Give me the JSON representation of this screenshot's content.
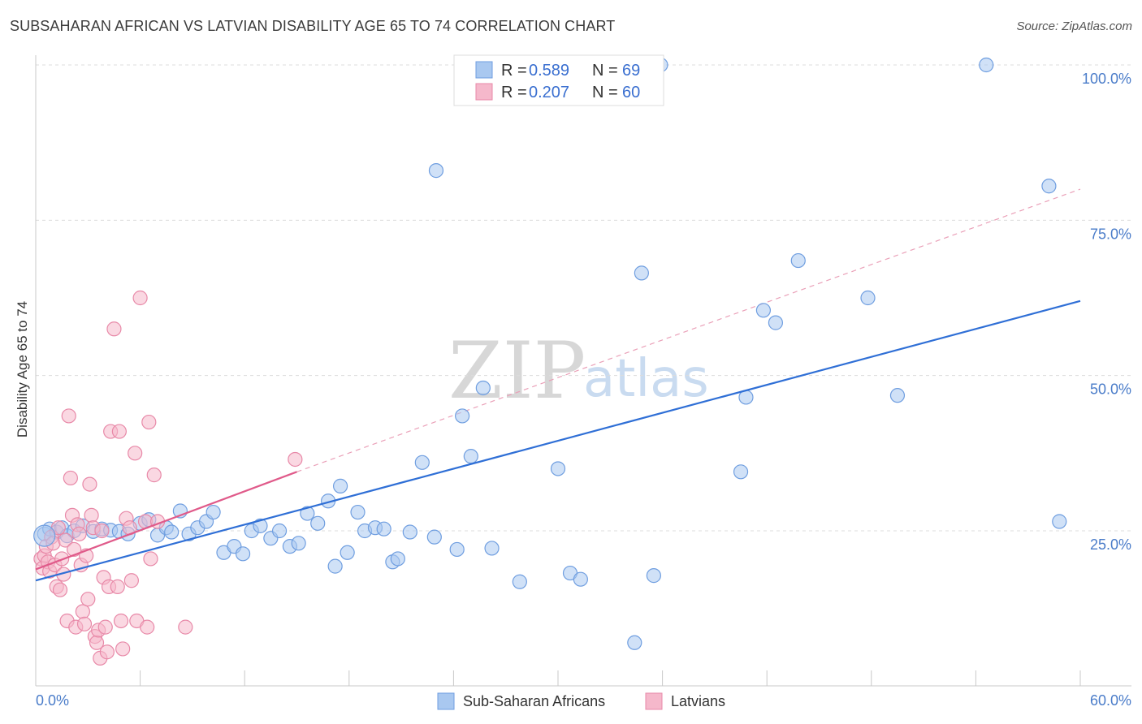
{
  "title": "SUBSAHARAN AFRICAN VS LATVIAN DISABILITY AGE 65 TO 74 CORRELATION CHART",
  "source": "Source: ZipAtlas.com",
  "watermark": {
    "zip": "ZIP",
    "atlas": "atlas"
  },
  "legend": {
    "r_label": "R =",
    "n_label": "N =",
    "entries": [
      {
        "r": "0.589",
        "n": "69"
      },
      {
        "r": "0.207",
        "n": "60"
      }
    ]
  },
  "chart_data": {
    "type": "scatter",
    "title": "SUBSAHARAN AFRICAN VS LATVIAN DISABILITY AGE 65 TO 74 CORRELATION CHART",
    "xlabel": "",
    "ylabel": "Disability Age 65 to 74",
    "xlim": [
      0,
      60
    ],
    "ylim": [
      0,
      102
    ],
    "x_tick_labels": [
      "0.0%",
      "60.0%"
    ],
    "y_ticks": [
      25,
      50,
      75,
      100
    ],
    "y_tick_labels": [
      "25.0%",
      "50.0%",
      "75.0%",
      "100.0%"
    ],
    "colors": {
      "blue": "#4a7cc9",
      "blue_fill": "#a9c8f0",
      "pink": "#e05a8a",
      "pink_fill": "#f5b8cb"
    },
    "series": [
      {
        "name": "Sub-Saharan Africans",
        "color": "#a9c8f0",
        "stroke": "#6f9ee0",
        "r": "0.589",
        "n": "69",
        "trend": {
          "x0": 0,
          "y0": 17.0,
          "x1": 60,
          "y1": 62.0
        },
        "points": [
          [
            0.5,
            24.5
          ],
          [
            0.8,
            25.3
          ],
          [
            1.2,
            24.8
          ],
          [
            1.5,
            25.5
          ],
          [
            1.8,
            24.2
          ],
          [
            2.2,
            25.0
          ],
          [
            2.7,
            25.8
          ],
          [
            3.3,
            24.9
          ],
          [
            3.8,
            25.3
          ],
          [
            4.3,
            25.1
          ],
          [
            4.8,
            24.9
          ],
          [
            5.3,
            24.5
          ],
          [
            6.0,
            26.2
          ],
          [
            6.5,
            26.8
          ],
          [
            7.0,
            24.3
          ],
          [
            7.5,
            25.5
          ],
          [
            7.8,
            24.8
          ],
          [
            8.3,
            28.2
          ],
          [
            8.8,
            24.5
          ],
          [
            9.3,
            25.5
          ],
          [
            9.8,
            26.5
          ],
          [
            10.2,
            28.0
          ],
          [
            10.8,
            21.5
          ],
          [
            11.4,
            22.5
          ],
          [
            11.9,
            21.3
          ],
          [
            12.4,
            25.0
          ],
          [
            12.9,
            25.8
          ],
          [
            13.5,
            23.8
          ],
          [
            14.0,
            25.0
          ],
          [
            14.6,
            22.5
          ],
          [
            15.1,
            23.0
          ],
          [
            15.6,
            27.8
          ],
          [
            16.2,
            26.2
          ],
          [
            16.8,
            29.8
          ],
          [
            17.2,
            19.3
          ],
          [
            17.5,
            32.2
          ],
          [
            17.9,
            21.5
          ],
          [
            18.5,
            28.0
          ],
          [
            18.9,
            25.0
          ],
          [
            19.5,
            25.5
          ],
          [
            20.0,
            25.3
          ],
          [
            20.5,
            20.0
          ],
          [
            20.8,
            20.5
          ],
          [
            21.5,
            24.8
          ],
          [
            22.2,
            36.0
          ],
          [
            22.9,
            24.0
          ],
          [
            23.0,
            83.0
          ],
          [
            24.2,
            22.0
          ],
          [
            24.5,
            43.5
          ],
          [
            25.0,
            37.0
          ],
          [
            25.7,
            48.0
          ],
          [
            26.2,
            22.2
          ],
          [
            27.8,
            16.8
          ],
          [
            30.0,
            35.0
          ],
          [
            30.7,
            18.2
          ],
          [
            31.3,
            17.2
          ],
          [
            34.4,
            7.0
          ],
          [
            34.8,
            66.5
          ],
          [
            35.5,
            17.8
          ],
          [
            35.9,
            100.0
          ],
          [
            40.5,
            34.5
          ],
          [
            40.8,
            46.5
          ],
          [
            41.8,
            60.5
          ],
          [
            42.5,
            58.5
          ],
          [
            43.8,
            68.5
          ],
          [
            47.8,
            62.5
          ],
          [
            49.5,
            46.8
          ],
          [
            54.6,
            100.0
          ],
          [
            58.2,
            80.5
          ],
          [
            58.8,
            26.5
          ]
        ]
      },
      {
        "name": "Latvians",
        "color": "#f5b8cb",
        "stroke": "#e889a8",
        "r": "0.207",
        "n": "60",
        "trend": {
          "x0": 0,
          "y0": 18.8,
          "x1": 15.0,
          "y1": 34.5
        },
        "trend_ext": {
          "x0": 15.0,
          "y0": 34.5,
          "x1": 60,
          "y1": 80.0
        },
        "points": [
          [
            0.3,
            20.5
          ],
          [
            0.4,
            19.0
          ],
          [
            0.5,
            21.0
          ],
          [
            0.6,
            22.5
          ],
          [
            0.7,
            20.0
          ],
          [
            0.8,
            18.5
          ],
          [
            0.9,
            24.0
          ],
          [
            1.0,
            23.0
          ],
          [
            1.1,
            19.5
          ],
          [
            1.2,
            16.0
          ],
          [
            1.3,
            25.5
          ],
          [
            1.4,
            15.5
          ],
          [
            1.5,
            20.5
          ],
          [
            1.6,
            18.0
          ],
          [
            1.7,
            23.5
          ],
          [
            1.8,
            10.5
          ],
          [
            1.9,
            43.5
          ],
          [
            2.0,
            33.5
          ],
          [
            2.1,
            27.5
          ],
          [
            2.2,
            22.0
          ],
          [
            2.3,
            9.5
          ],
          [
            2.4,
            26.0
          ],
          [
            2.5,
            24.5
          ],
          [
            2.6,
            19.5
          ],
          [
            2.7,
            12.0
          ],
          [
            2.8,
            10.0
          ],
          [
            2.9,
            21.0
          ],
          [
            3.0,
            14.0
          ],
          [
            3.1,
            32.5
          ],
          [
            3.2,
            27.5
          ],
          [
            3.3,
            25.5
          ],
          [
            3.4,
            8.0
          ],
          [
            3.5,
            7.0
          ],
          [
            3.6,
            9.0
          ],
          [
            3.7,
            4.5
          ],
          [
            3.8,
            25.0
          ],
          [
            3.9,
            17.5
          ],
          [
            4.0,
            9.5
          ],
          [
            4.1,
            5.5
          ],
          [
            4.2,
            16.0
          ],
          [
            4.3,
            41.0
          ],
          [
            4.5,
            57.5
          ],
          [
            4.7,
            16.0
          ],
          [
            4.8,
            41.0
          ],
          [
            4.9,
            10.5
          ],
          [
            5.0,
            6.0
          ],
          [
            5.2,
            27.0
          ],
          [
            5.4,
            25.5
          ],
          [
            5.5,
            17.0
          ],
          [
            5.7,
            37.5
          ],
          [
            5.8,
            10.5
          ],
          [
            6.0,
            62.5
          ],
          [
            6.3,
            26.5
          ],
          [
            6.4,
            9.5
          ],
          [
            6.5,
            42.5
          ],
          [
            6.6,
            20.5
          ],
          [
            6.8,
            34.0
          ],
          [
            7.0,
            26.5
          ],
          [
            8.6,
            9.5
          ],
          [
            14.9,
            36.5
          ]
        ]
      }
    ]
  },
  "bottom_legend": [
    "Sub-Saharan Africans",
    "Latvians"
  ]
}
